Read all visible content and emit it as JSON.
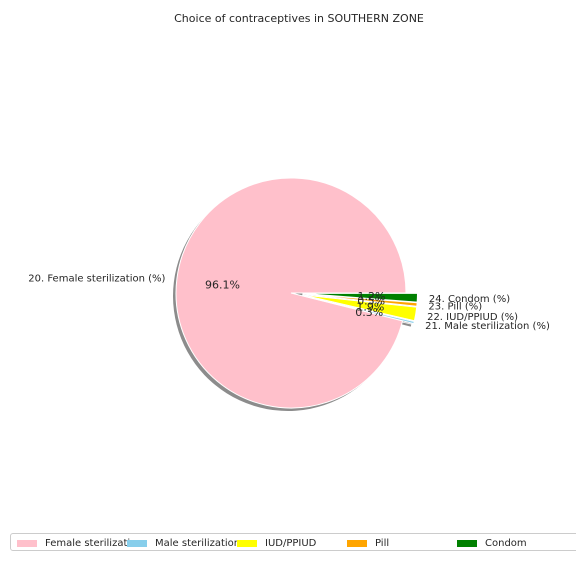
{
  "chart_data": {
    "type": "pie",
    "title": "Choice of contraceptives in SOUTHERN ZONE",
    "slices": [
      {
        "label": "20. Female sterilization (%)",
        "legend": "Female sterilization",
        "value": 96.1,
        "pct_label": "96.1%",
        "color": "#ffc0cb",
        "exploded": false
      },
      {
        "label": "21. Male sterilization (%)",
        "legend": "Male sterilization",
        "value": 0.3,
        "pct_label": "0.3%",
        "color": "#87ceeb",
        "exploded": true
      },
      {
        "label": "22. IUD/PPIUD (%)",
        "legend": "IUD/PPIUD",
        "value": 1.9,
        "pct_label": "1.9%",
        "color": "#ffff00",
        "exploded": true
      },
      {
        "label": "23. Pill (%)",
        "legend": "Pill",
        "value": 0.5,
        "pct_label": "0.5%",
        "color": "#ffa500",
        "exploded": true
      },
      {
        "label": "24. Condom (%)",
        "legend": "Condom",
        "value": 1.2,
        "pct_label": "1.2%",
        "color": "#008000",
        "exploded": true
      }
    ],
    "shadow": true,
    "legend_position": "bottom"
  }
}
